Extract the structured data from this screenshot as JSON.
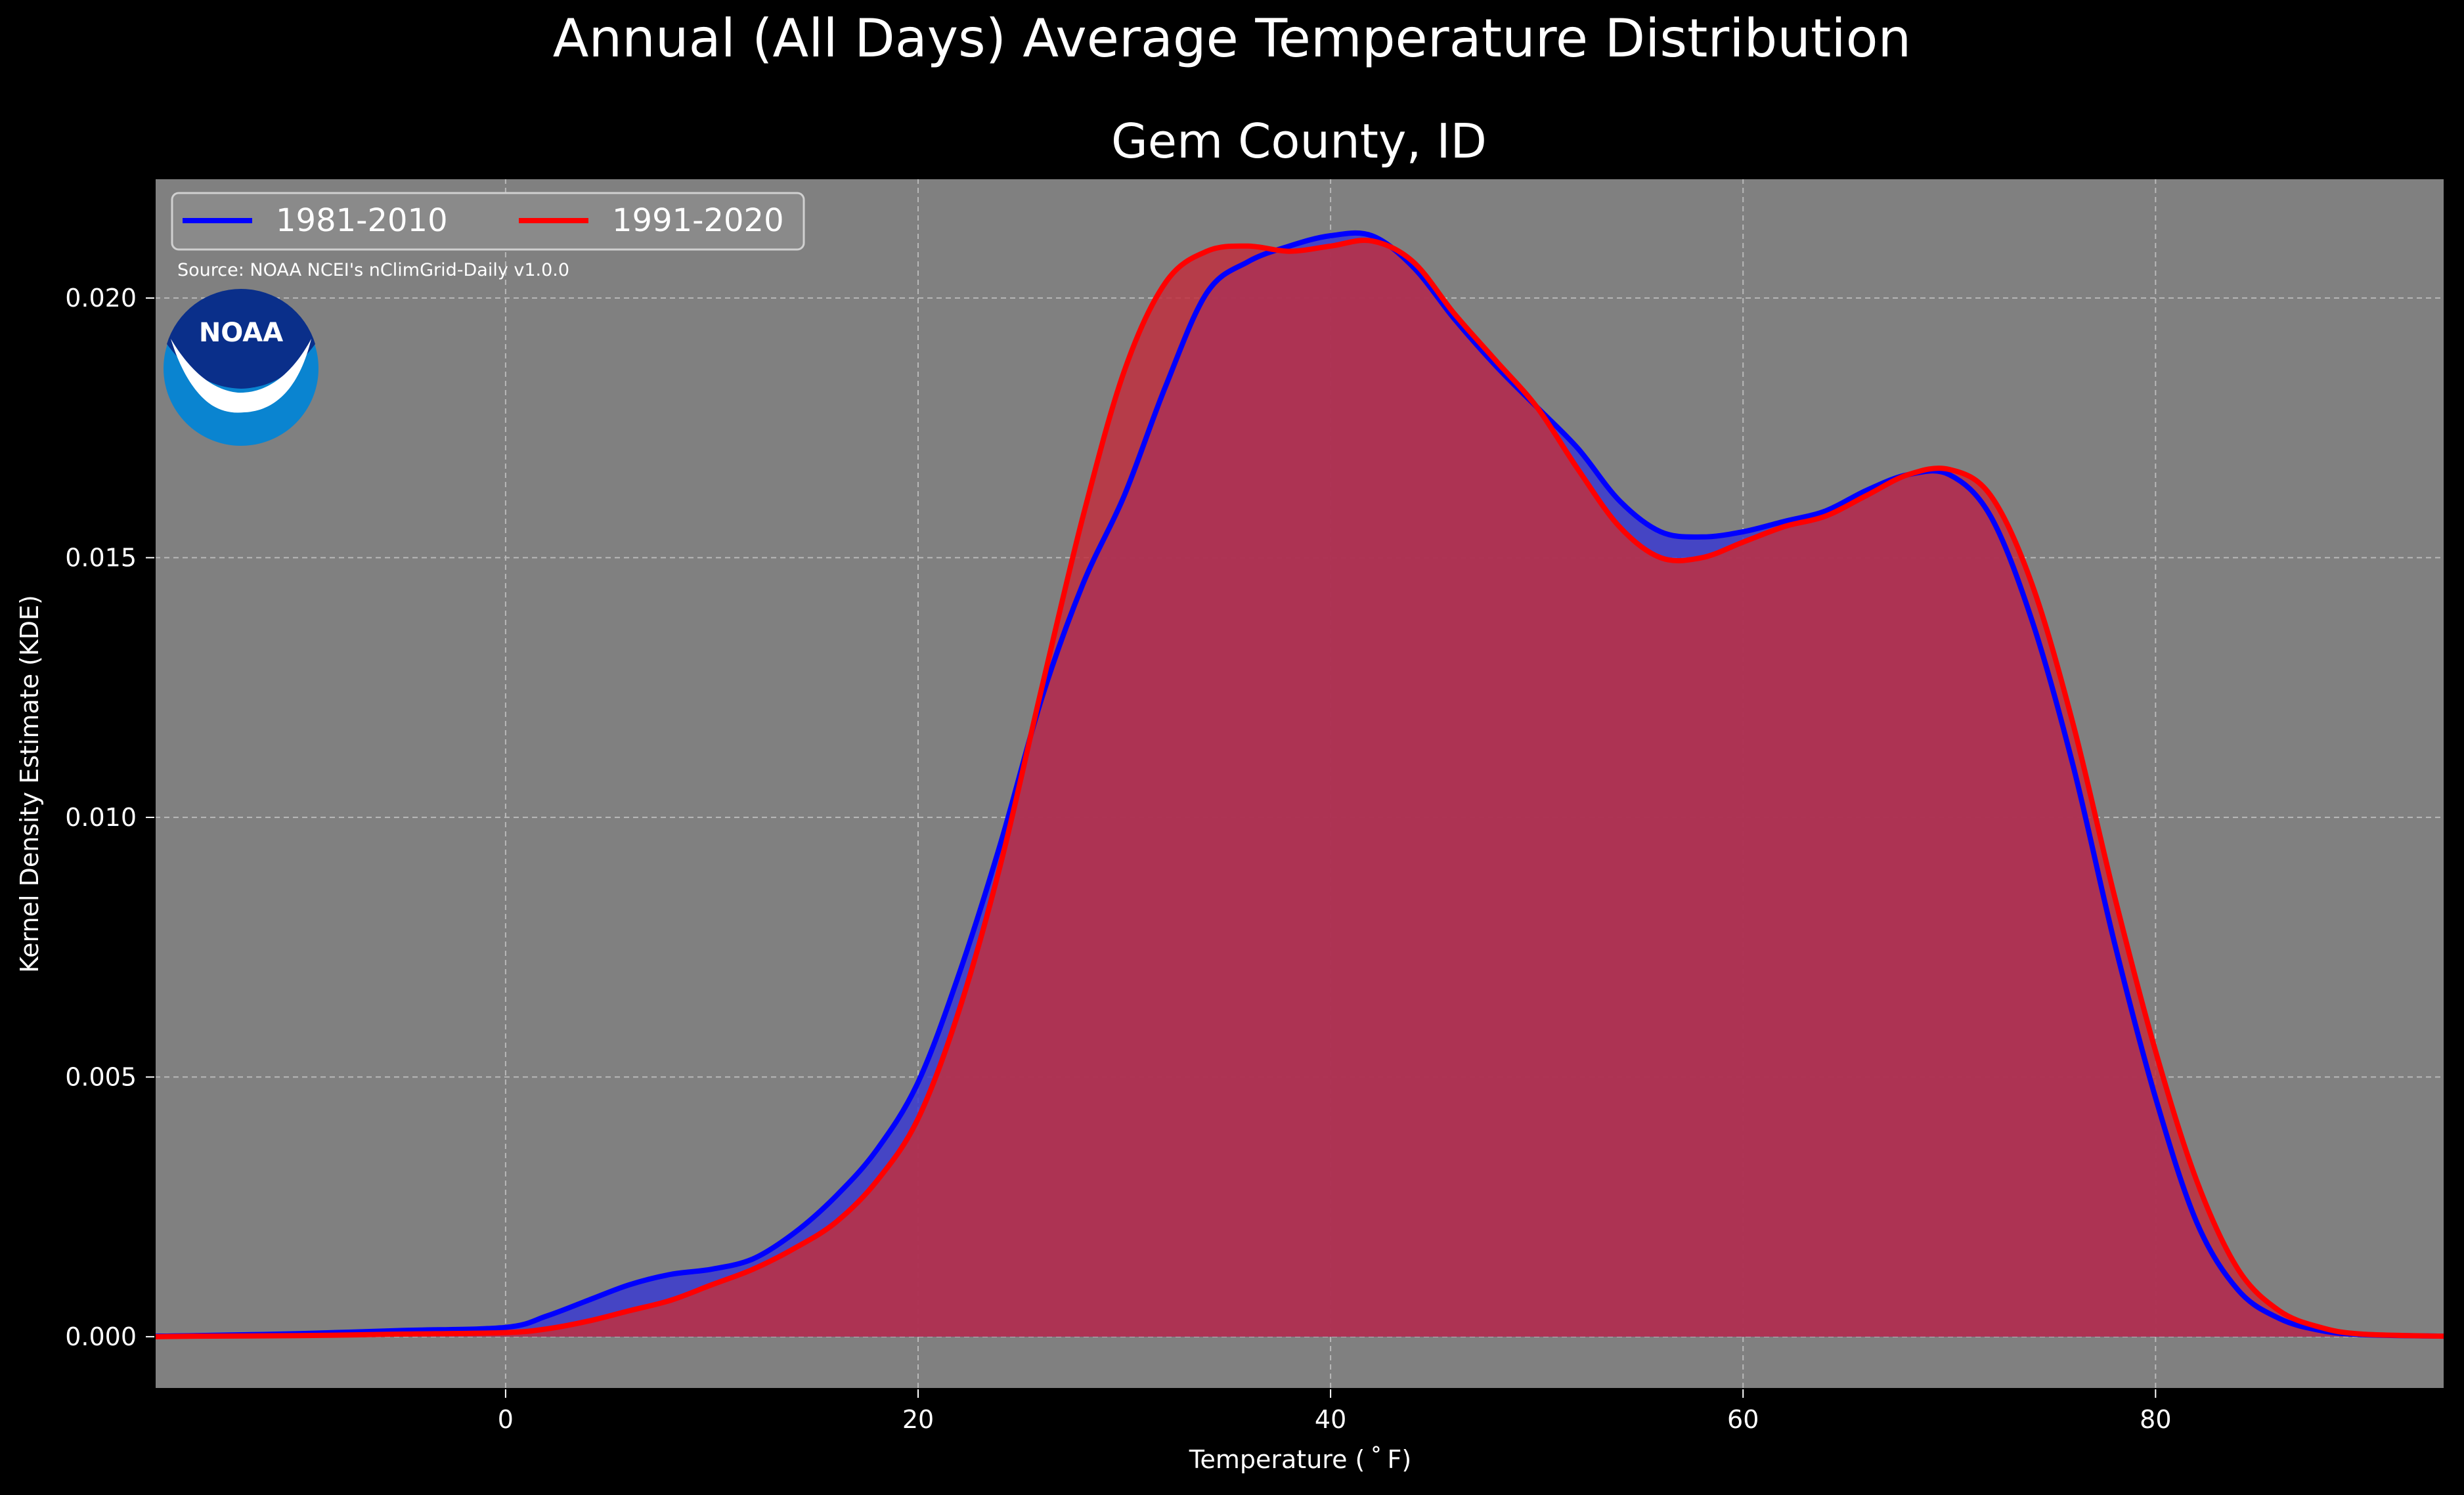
{
  "figure": {
    "suptitle": "Annual (All Days) Average Temperature Distribution",
    "background": "#000000"
  },
  "chart_data": {
    "type": "area",
    "title": "Gem County, ID",
    "xlabel": "Temperature ($^\\circ$F)",
    "xlabel_display": "Temperature ( ˚ F)",
    "ylabel": "Kernel Density Estimate (KDE)",
    "xlim": [
      -17,
      94
    ],
    "ylim": [
      -0.001,
      0.0223
    ],
    "xticks": [
      0,
      20,
      40,
      60,
      80
    ],
    "xtick_labels": [
      "0",
      "20",
      "40",
      "60",
      "80"
    ],
    "yticks": [
      0.0,
      0.005,
      0.01,
      0.015,
      0.02
    ],
    "ytick_labels": [
      "0.000",
      "0.005",
      "0.010",
      "0.015",
      "0.020"
    ],
    "grid": true,
    "legend_position": "top-left",
    "plot_background": "#808080",
    "annotation": "Source: NOAA NCEI's nClimGrid-Daily v1.0.0",
    "logo_text": "NOAA",
    "x": [
      -17,
      -15,
      -10,
      -5,
      0,
      2,
      4,
      6,
      8,
      10,
      12,
      14,
      16,
      18,
      20,
      22,
      24,
      26,
      28,
      30,
      32,
      34,
      36,
      38,
      40,
      42,
      44,
      46,
      48,
      50,
      52,
      54,
      56,
      58,
      60,
      62,
      64,
      66,
      68,
      70,
      72,
      74,
      76,
      78,
      80,
      82,
      84,
      86,
      88,
      90,
      94
    ],
    "series": [
      {
        "name": "1981-2010",
        "color": "#0000ff",
        "fill": "#3b3bd0",
        "values": [
          1e-05,
          2e-05,
          6e-05,
          0.00012,
          0.00018,
          0.0004,
          0.0007,
          0.001,
          0.0012,
          0.0013,
          0.0015,
          0.002,
          0.0027,
          0.0036,
          0.0049,
          0.007,
          0.0095,
          0.0123,
          0.0145,
          0.0162,
          0.0183,
          0.0201,
          0.0207,
          0.021,
          0.0212,
          0.0212,
          0.0206,
          0.0196,
          0.0187,
          0.0179,
          0.0171,
          0.0161,
          0.0155,
          0.0154,
          0.0155,
          0.0157,
          0.0159,
          0.0163,
          0.0166,
          0.0166,
          0.0158,
          0.0138,
          0.011,
          0.0076,
          0.0046,
          0.0022,
          0.0009,
          0.00035,
          0.00012,
          4e-05,
          1e-05
        ]
      },
      {
        "name": "1991-2020",
        "color": "#ff0000",
        "fill": "#c0303f",
        "values": [
          0.0,
          1e-05,
          2e-05,
          5e-05,
          8e-05,
          0.00015,
          0.0003,
          0.0005,
          0.0007,
          0.001,
          0.0013,
          0.0017,
          0.0022,
          0.003,
          0.0042,
          0.0063,
          0.0091,
          0.0125,
          0.0158,
          0.0186,
          0.0203,
          0.0209,
          0.021,
          0.0209,
          0.021,
          0.0211,
          0.0207,
          0.0197,
          0.0188,
          0.0179,
          0.0167,
          0.0156,
          0.015,
          0.015,
          0.0153,
          0.0156,
          0.0158,
          0.0162,
          0.0166,
          0.0167,
          0.0162,
          0.0145,
          0.0118,
          0.0085,
          0.0055,
          0.003,
          0.0013,
          0.0005,
          0.00018,
          5e-05,
          1e-05
        ]
      }
    ]
  }
}
